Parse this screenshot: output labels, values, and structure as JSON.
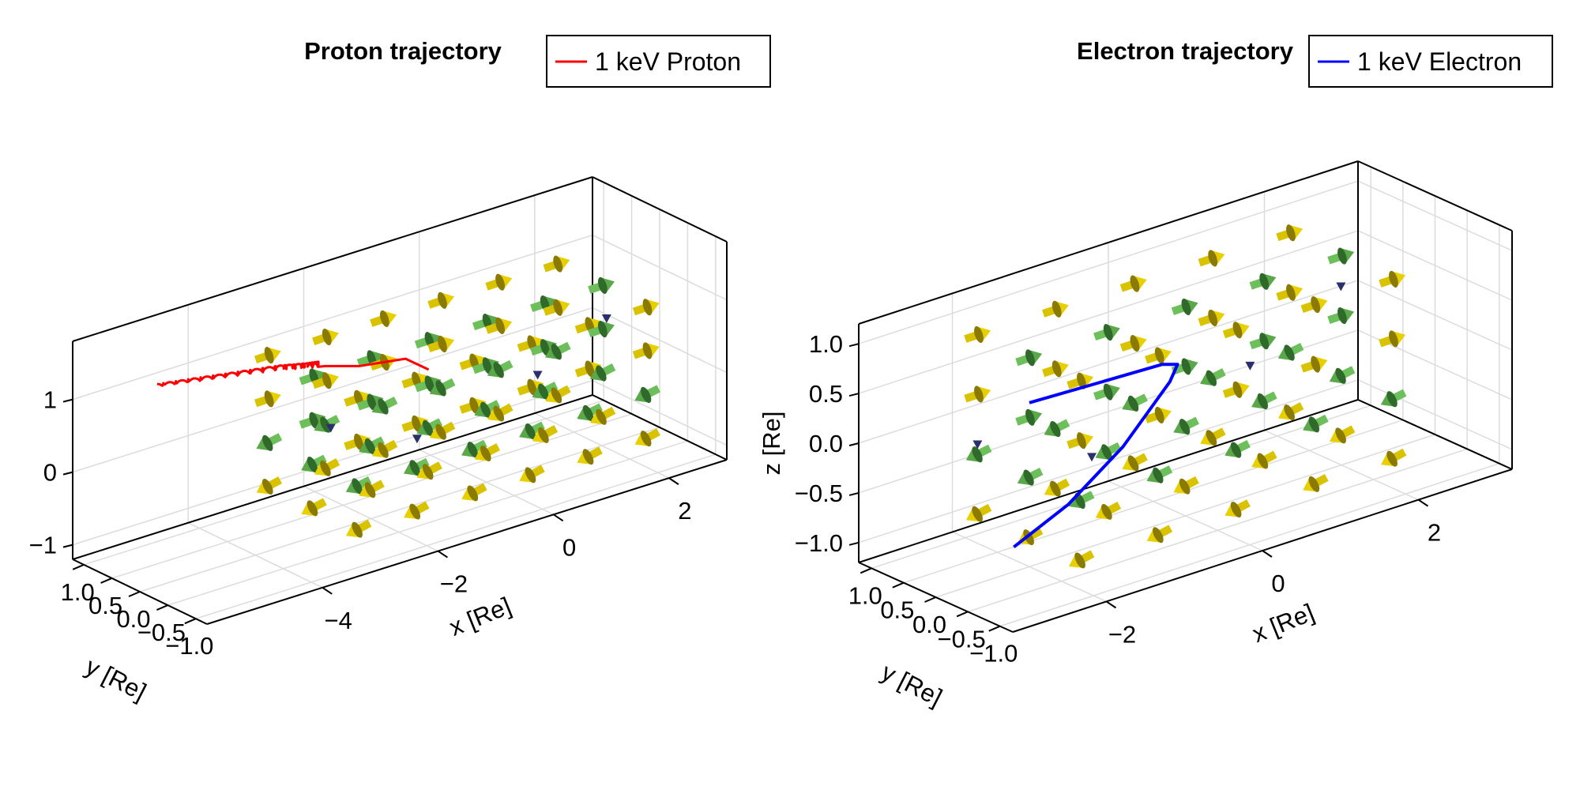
{
  "chart_data": [
    {
      "type": "scatter3d",
      "title": "Proton trajectory",
      "legend": {
        "placement": "top-right",
        "entries": [
          {
            "label": "1 keV Proton",
            "color": "#ff0000"
          }
        ]
      },
      "xlabel": "x [Re]",
      "ylabel": "y [Re]",
      "zlabel": "",
      "xlim": [
        -6,
        3
      ],
      "ylim": [
        -1.2,
        1.2
      ],
      "zlim": [
        -1.2,
        1.8
      ],
      "xticks": [
        "−4",
        "−2",
        "0",
        "2"
      ],
      "xtick_values": [
        -4,
        -2,
        0,
        2
      ],
      "yticks": [
        "1.0",
        "0.5",
        "0.0",
        "−0.5",
        "−1.0"
      ],
      "ytick_values": [
        1.0,
        0.5,
        0.0,
        -0.5,
        -1.0
      ],
      "zticks": [
        "−1",
        "0",
        "1"
      ],
      "ztick_values": [
        -1,
        0,
        1
      ],
      "grid": true,
      "series": [
        {
          "name": "1 keV Proton",
          "color": "#ff0000",
          "style": "gyrating line",
          "points": [
            [
              -5.7,
              0.0,
              1.55
            ],
            [
              -5.0,
              0.0,
              1.45
            ],
            [
              -4.3,
              0.0,
              1.35
            ],
            [
              -3.6,
              0.0,
              1.25
            ],
            [
              -3.1,
              0.0,
              1.15
            ],
            [
              -2.8,
              0.0,
              1.1
            ],
            [
              -2.2,
              0.0,
              0.95
            ],
            [
              -1.4,
              0.0,
              0.85
            ],
            [
              -1.0,
              0.0,
              0.6
            ]
          ]
        }
      ],
      "vector_field": {
        "colors": [
          "#e8cc00",
          "#5aa84a",
          "#2b2f6b"
        ],
        "description": "3D arrows of magnetic/electric field on grid"
      }
    },
    {
      "type": "scatter3d",
      "title": "Electron trajectory",
      "legend": {
        "placement": "top-right",
        "entries": [
          {
            "label": "1 keV Electron",
            "color": "#0000ff"
          }
        ]
      },
      "xlabel": "x [Re]",
      "ylabel": "y [Re]",
      "zlabel": "z [Re]",
      "xlim": [
        -3.2,
        3.2
      ],
      "ylim": [
        -1.2,
        1.2
      ],
      "zlim": [
        -1.2,
        1.2
      ],
      "xticks": [
        "−2",
        "0",
        "2"
      ],
      "xtick_values": [
        -2,
        0,
        2
      ],
      "yticks": [
        "1.0",
        "0.5",
        "0.0",
        "−0.5",
        "−1.0"
      ],
      "ytick_values": [
        1.0,
        0.5,
        0.0,
        -0.5,
        -1.0
      ],
      "zticks": [
        "−1.0",
        "−0.5",
        "0.0",
        "0.5",
        "1.0"
      ],
      "ztick_values": [
        -1.0,
        -0.5,
        0.0,
        0.5,
        1.0
      ],
      "grid": true,
      "series": [
        {
          "name": "1 keV Electron",
          "color": "#0000ff",
          "style": "line",
          "points": [
            [
              -2.0,
              0.0,
              0.45
            ],
            [
              -1.0,
              0.0,
              0.42
            ],
            [
              -0.3,
              0.0,
              0.4
            ],
            [
              -0.1,
              0.0,
              0.35
            ],
            [
              -0.2,
              0.0,
              0.2
            ],
            [
              -0.8,
              0.0,
              -0.3
            ],
            [
              -1.5,
              0.0,
              -0.7
            ],
            [
              -2.2,
              0.0,
              -0.95
            ]
          ]
        }
      ],
      "vector_field": {
        "colors": [
          "#e8cc00",
          "#5aa84a",
          "#2b2f6b"
        ],
        "description": "3D arrows of magnetic/electric field on grid"
      }
    }
  ]
}
